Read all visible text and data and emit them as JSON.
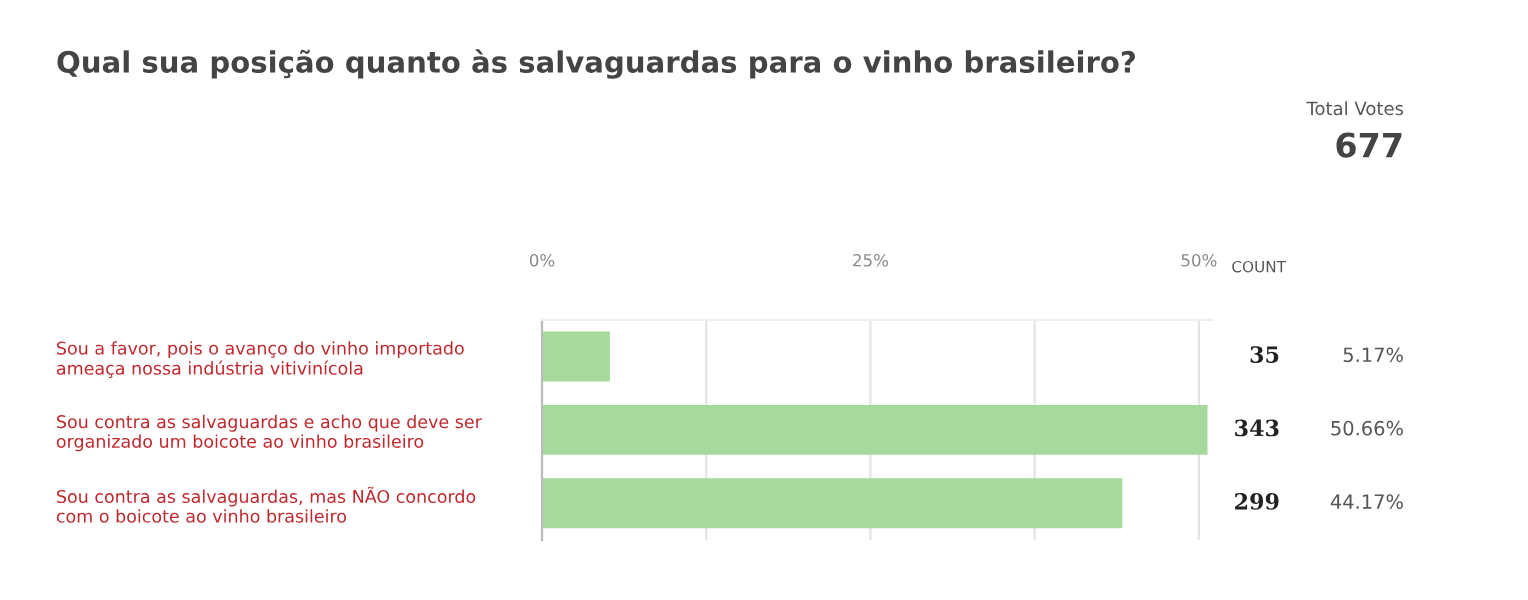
{
  "chart_data": {
    "type": "bar",
    "orientation": "horizontal",
    "title": "Qual sua posição quanto às salvaguardas para o vinho brasileiro?",
    "categories": [
      "Sou a favor, pois o avanço do vinho importado\nameaça nossa indústria vitivinícola",
      "Sou contra as salvaguardas e acho que deve ser\norganizado um boicote ao vinho brasileiro",
      "Sou contra as salvaguardas, mas NÃO concordo\ncom o boicote ao vinho brasileiro"
    ],
    "values": [
      5.17,
      50.66,
      44.17
    ],
    "value_labels": [
      "5.17%",
      "50.66%",
      "44.17%"
    ],
    "color": "#a5da9c",
    "xlim": [
      0,
      51
    ],
    "xticks": [
      {
        "value": 0,
        "label": "0%"
      },
      {
        "value": 12.5,
        "label": null
      },
      {
        "value": 25,
        "label": "25%"
      },
      {
        "value": 37.5,
        "label": null
      },
      {
        "value": 50,
        "label": "50%"
      }
    ],
    "grid": "x",
    "annotations": [
      "Total Votes",
      "677",
      "COUNT",
      "35",
      "343",
      "299"
    ]
  }
}
